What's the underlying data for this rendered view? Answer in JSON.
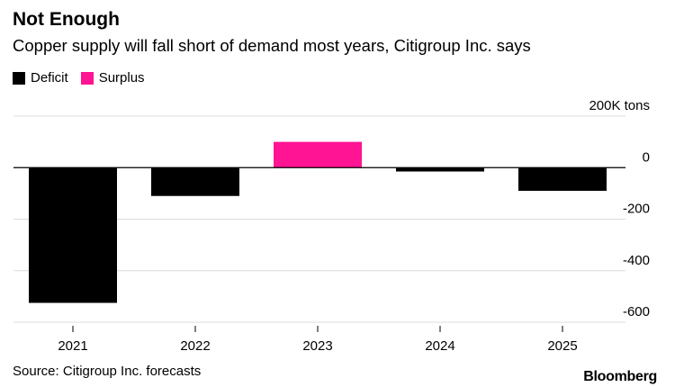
{
  "header": {
    "title": "Not Enough",
    "subtitle": "Copper supply will fall short of demand most years, Citigroup Inc. says"
  },
  "legend": {
    "items": [
      {
        "label": "Deficit",
        "color": "#000000"
      },
      {
        "label": "Surplus",
        "color": "#ff1493"
      }
    ]
  },
  "footer": {
    "source": "Source: Citigroup Inc. forecasts",
    "brand": "Bloomberg"
  },
  "chart_data": {
    "type": "bar",
    "categories": [
      "2021",
      "2022",
      "2023",
      "2024",
      "2025"
    ],
    "series": [
      {
        "name": "Deficit",
        "color": "#000000",
        "values": [
          -525,
          -110,
          null,
          -15,
          -90
        ]
      },
      {
        "name": "Surplus",
        "color": "#ff1493",
        "values": [
          null,
          null,
          100,
          null,
          null
        ]
      }
    ],
    "ylim": [
      -600,
      200
    ],
    "yticks": [
      200,
      0,
      -200,
      -400,
      -600
    ],
    "ytick_labels": [
      "200K tons",
      "0",
      "-200",
      "-400",
      "-600"
    ],
    "legend_position": "top-left",
    "grid": true
  }
}
